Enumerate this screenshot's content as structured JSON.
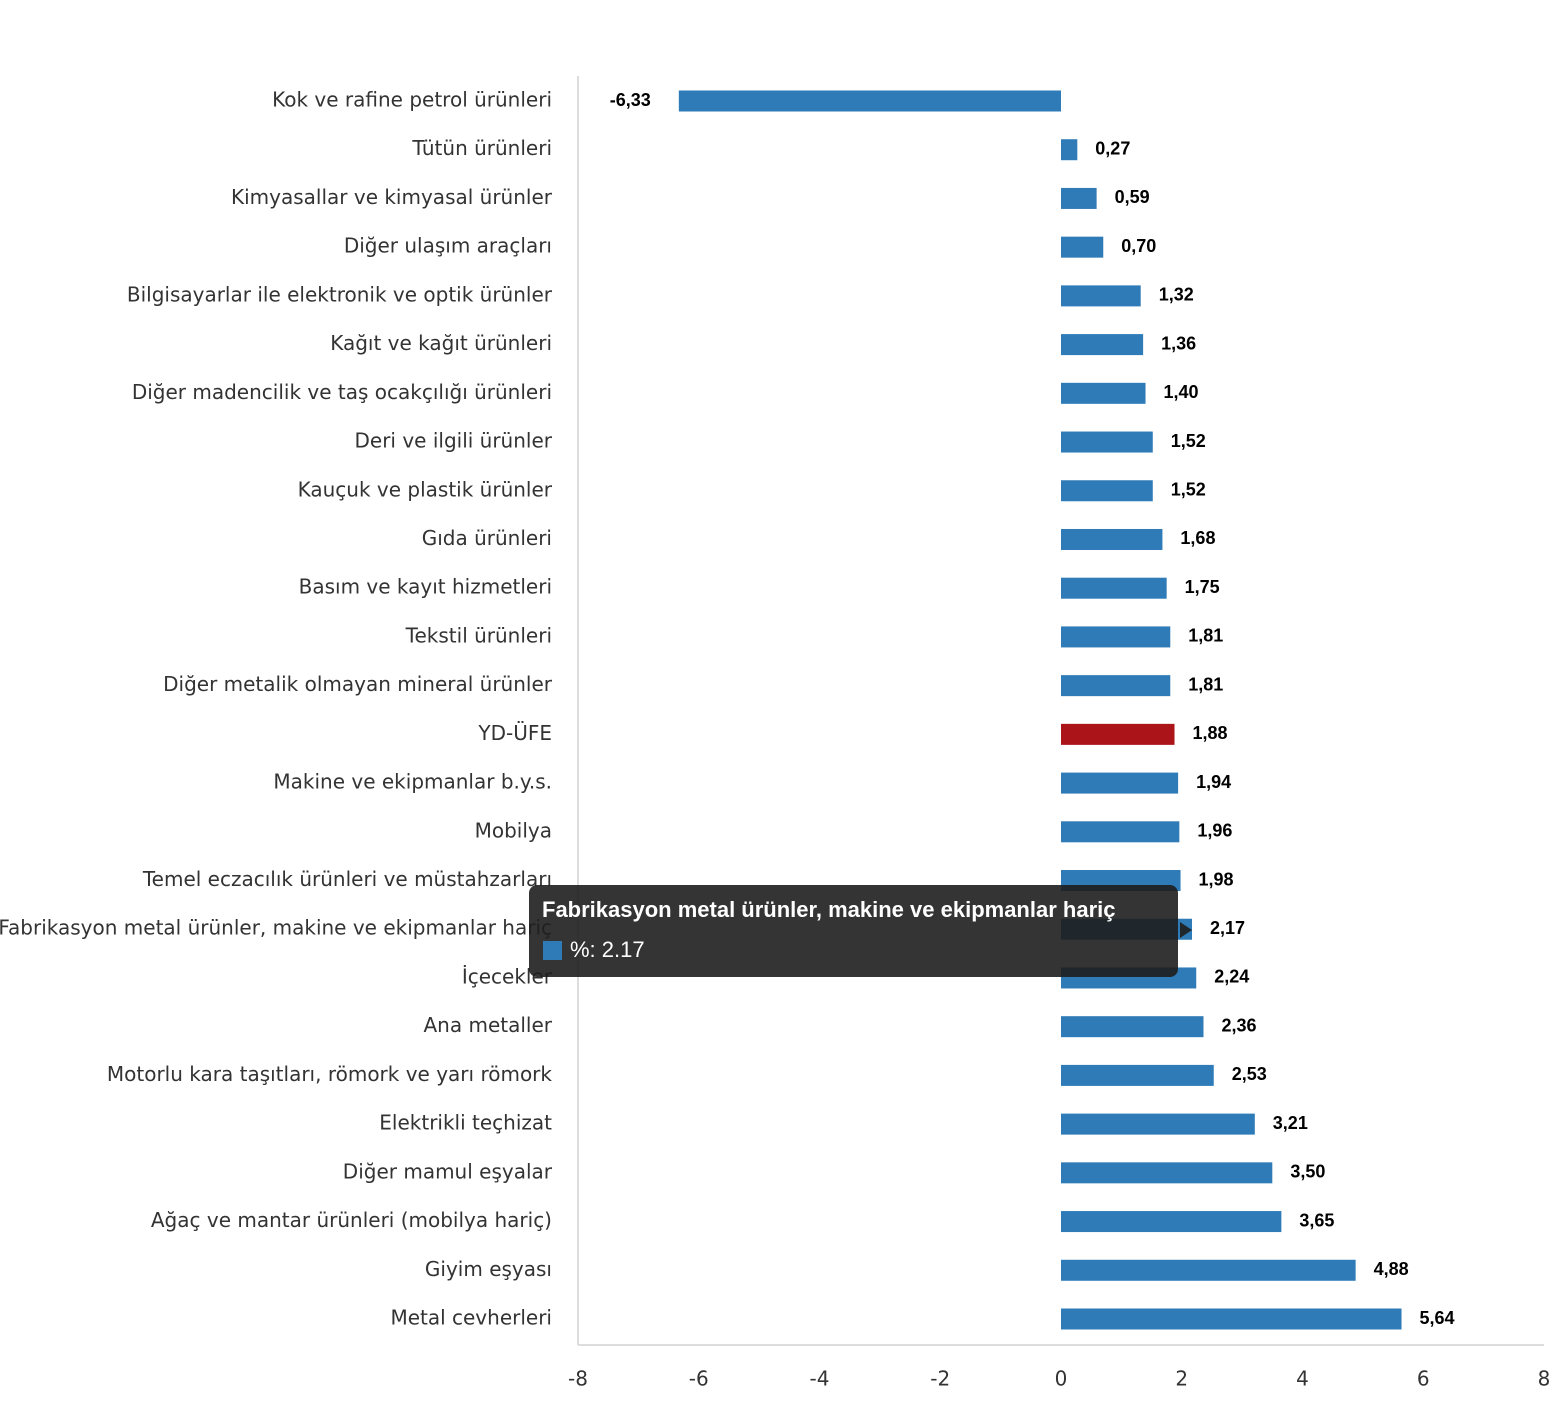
{
  "chart_data": {
    "type": "bar",
    "orientation": "horizontal",
    "categories": [
      "Kok ve rafine petrol ürünleri",
      "Tütün ürünleri",
      "Kimyasallar ve kimyasal ürünler",
      "Diğer ulaşım araçları",
      "Bilgisayarlar ile elektronik ve optik ürünler",
      "Kağıt ve kağıt ürünleri",
      "Diğer madencilik ve taş ocakçılığı ürünleri",
      "Deri ve ilgili ürünler",
      "Kauçuk ve plastik ürünler",
      "Gıda ürünleri",
      "Basım ve kayıt hizmetleri",
      "Tekstil ürünleri",
      "Diğer metalik olmayan mineral ürünler",
      "YD-ÜFE",
      "Makine ve ekipmanlar b.y.s.",
      "Mobilya",
      "Temel eczacılık ürünleri ve müstahzarları",
      "Fabrikasyon metal ürünler, makine ve ekipmanlar hariç",
      "İçecekler",
      "Ana metaller",
      "Motorlu kara taşıtları, römork ve yarı römork",
      "Elektrikli teçhizat",
      "Diğer mamul eşyalar",
      "Ağaç ve mantar ürünleri (mobilya hariç)",
      "Giyim eşyası",
      "Metal cevherleri"
    ],
    "values": [
      -6.33,
      0.27,
      0.59,
      0.7,
      1.32,
      1.36,
      1.4,
      1.52,
      1.52,
      1.68,
      1.75,
      1.81,
      1.81,
      1.88,
      1.94,
      1.96,
      1.98,
      2.17,
      2.24,
      2.36,
      2.53,
      3.21,
      3.5,
      3.65,
      4.88,
      5.64
    ],
    "value_labels": [
      "-6,33",
      "0,27",
      "0,59",
      "0,70",
      "1,32",
      "1,36",
      "1,40",
      "1,52",
      "1,52",
      "1,68",
      "1,75",
      "1,81",
      "1,81",
      "1,88",
      "1,94",
      "1,96",
      "1,98",
      "2,17",
      "2,24",
      "2,36",
      "2,53",
      "3,21",
      "3,50",
      "3,65",
      "4,88",
      "5,64"
    ],
    "colors": [
      "#2e7bb8",
      "#2e7bb8",
      "#2e7bb8",
      "#2e7bb8",
      "#2e7bb8",
      "#2e7bb8",
      "#2e7bb8",
      "#2e7bb8",
      "#2e7bb8",
      "#2e7bb8",
      "#2e7bb8",
      "#2e7bb8",
      "#2e7bb8",
      "#ab1419",
      "#2e7bb8",
      "#2e7bb8",
      "#2e7bb8",
      "#2e7bb8",
      "#2e7bb8",
      "#2e7bb8",
      "#2e7bb8",
      "#2e7bb8",
      "#2e7bb8",
      "#2e7bb8",
      "#2e7bb8",
      "#2e7bb8"
    ],
    "xlim": [
      -8,
      8
    ],
    "xticks": [
      -8,
      -6,
      -4,
      -2,
      0,
      2,
      4,
      6,
      8
    ],
    "grid": false,
    "tooltip": {
      "title": "Fabrikasyon metal ürünler, makine ve ekipmanlar hariç",
      "text": "%: 2.17"
    }
  }
}
